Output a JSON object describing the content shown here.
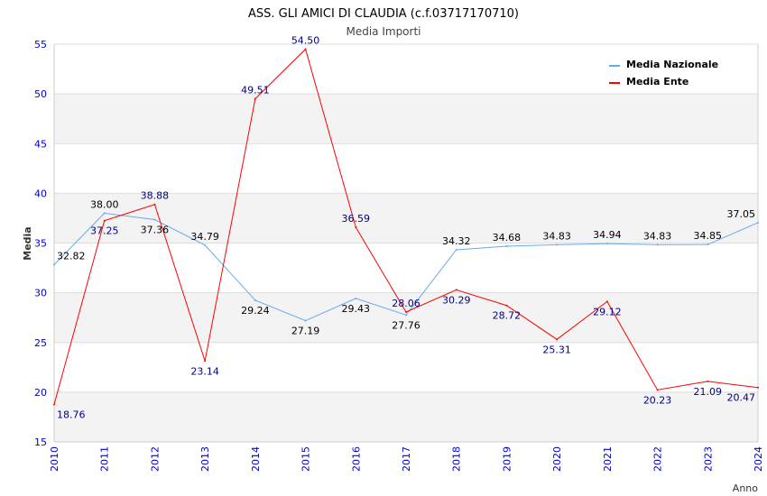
{
  "chart_data": {
    "type": "line",
    "title": "ASS. GLI AMICI DI CLAUDIA (c.f.03717170710)",
    "subtitle": "Media Importi",
    "xlabel": "Anno",
    "ylabel": "Media",
    "ylim": [
      15,
      55
    ],
    "yticks": [
      15,
      20,
      25,
      30,
      35,
      40,
      45,
      50,
      55
    ],
    "x": [
      2010,
      2011,
      2012,
      2013,
      2014,
      2015,
      2016,
      2017,
      2018,
      2019,
      2020,
      2021,
      2022,
      2023,
      2024
    ],
    "legend_position": "top-right",
    "series": [
      {
        "name": "Media Nazionale",
        "color": "#66aaee",
        "label_color": "#000000",
        "values": [
          32.82,
          38.0,
          37.36,
          34.79,
          29.24,
          27.19,
          29.43,
          27.76,
          34.32,
          34.68,
          34.83,
          34.94,
          34.83,
          34.85,
          37.05
        ]
      },
      {
        "name": "Media Ente",
        "color": "#ff0000",
        "label_color": "#000080",
        "values": [
          18.76,
          37.25,
          38.88,
          23.14,
          49.51,
          54.5,
          36.59,
          28.06,
          30.29,
          28.72,
          25.31,
          29.12,
          20.23,
          21.09,
          20.47
        ]
      }
    ]
  }
}
